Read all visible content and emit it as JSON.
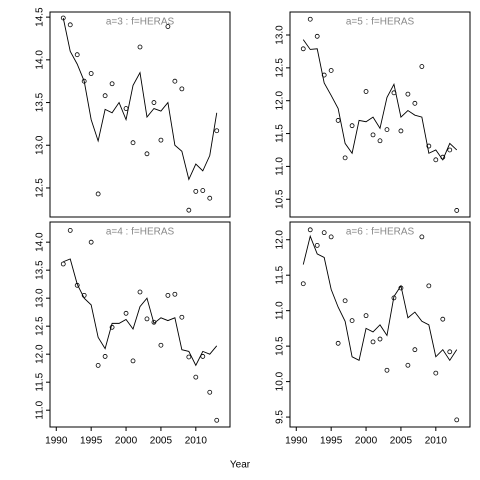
{
  "xlabel": "Year",
  "chart_data": [
    {
      "type": "line",
      "title": "a=3  :  f=HERAS",
      "x": [
        1991,
        1992,
        1993,
        1994,
        1995,
        1996,
        1997,
        1998,
        1999,
        2000,
        2001,
        2002,
        2003,
        2004,
        2005,
        2006,
        2007,
        2008,
        2009,
        2010,
        2011,
        2012,
        2013
      ],
      "series": [
        {
          "color": "#000000",
          "marker": "none",
          "values": [
            14.49,
            14.1,
            13.95,
            13.75,
            13.3,
            13.05,
            13.42,
            13.38,
            13.5,
            13.3,
            13.7,
            13.85,
            13.33,
            13.43,
            13.4,
            13.5,
            13.0,
            12.93,
            12.6,
            12.78,
            12.7,
            12.88,
            13.38
          ]
        },
        {
          "color": "#000000",
          "marker": "circle",
          "values": [
            14.49,
            14.41,
            14.06,
            13.75,
            13.84,
            12.43,
            13.58,
            13.72,
            null,
            13.43,
            13.03,
            14.15,
            12.9,
            13.5,
            13.06,
            14.39,
            13.75,
            13.66,
            12.24,
            12.46,
            12.47,
            12.38,
            13.17
          ]
        }
      ],
      "xlim": [
        1989.1,
        2014.9
      ],
      "ylim": [
        12.16,
        14.56
      ],
      "yticks": [
        12.5,
        {
          "value": 13,
          "label": "13.0"
        },
        13.5,
        {
          "value": 14,
          "label": "14.0"
        },
        14.5
      ]
    },
    {
      "type": "line",
      "title": "a=5  :  f=HERAS",
      "x": [
        1991,
        1992,
        1993,
        1994,
        1995,
        1996,
        1997,
        1998,
        1999,
        2000,
        2001,
        2002,
        2003,
        2004,
        2005,
        2006,
        2007,
        2008,
        2009,
        2010,
        2011,
        2012,
        2013
      ],
      "series": [
        {
          "color": "#000000",
          "marker": "none",
          "values": [
            12.93,
            12.78,
            12.79,
            12.27,
            12.08,
            11.88,
            11.35,
            11.2,
            11.7,
            11.68,
            11.75,
            11.58,
            12.05,
            12.25,
            11.75,
            11.85,
            11.78,
            11.75,
            11.2,
            11.25,
            11.1,
            11.35,
            11.25
          ]
        },
        {
          "color": "#000000",
          "marker": "circle",
          "values": [
            12.79,
            13.24,
            12.98,
            12.39,
            12.46,
            11.7,
            11.13,
            11.62,
            null,
            12.14,
            11.48,
            11.39,
            11.56,
            12.12,
            11.54,
            12.1,
            11.96,
            12.52,
            11.31,
            11.1,
            11.14,
            11.25,
            10.33
          ]
        }
      ],
      "xlim": [
        1989.1,
        2014.9
      ],
      "ylim": [
        10.23,
        13.35
      ],
      "yticks": [
        10.5,
        {
          "value": 11,
          "label": "11.0"
        },
        11.5,
        {
          "value": 12,
          "label": "12.0"
        },
        12.5,
        {
          "value": 13,
          "label": "13.0"
        }
      ]
    },
    {
      "type": "line",
      "title": "a=4  :  f=HERAS",
      "x": [
        1991,
        1992,
        1993,
        1994,
        1995,
        1996,
        1997,
        1998,
        1999,
        2000,
        2001,
        2002,
        2003,
        2004,
        2005,
        2006,
        2007,
        2008,
        2009,
        2010,
        2011,
        2012,
        2013
      ],
      "series": [
        {
          "color": "#000000",
          "marker": "none",
          "values": [
            13.65,
            13.7,
            13.25,
            13.0,
            12.88,
            12.3,
            12.1,
            12.55,
            12.55,
            12.62,
            12.45,
            12.85,
            13.0,
            12.55,
            12.65,
            12.6,
            12.65,
            12.08,
            12.05,
            11.8,
            12.05,
            12.0,
            12.15
          ]
        },
        {
          "color": "#000000",
          "marker": "circle",
          "values": [
            13.61,
            14.21,
            13.23,
            13.05,
            14.0,
            11.8,
            11.96,
            12.48,
            null,
            12.73,
            11.88,
            13.11,
            12.63,
            12.57,
            12.16,
            13.05,
            13.07,
            12.66,
            11.95,
            11.59,
            11.96,
            11.32,
            10.82
          ]
        }
      ],
      "xlim": [
        1989.1,
        2014.9
      ],
      "ylim": [
        10.7,
        14.36
      ],
      "xticks": [
        1990,
        1995,
        2000,
        2005,
        2010
      ],
      "yticks": [
        {
          "value": 11,
          "label": "11.0"
        },
        11.5,
        {
          "value": 12,
          "label": "12.0"
        },
        12.5,
        {
          "value": 13,
          "label": "13.0"
        },
        13.5,
        {
          "value": 14,
          "label": "14.0"
        }
      ]
    },
    {
      "type": "line",
      "title": "a=6  :  f=HERAS",
      "x": [
        1991,
        1992,
        1993,
        1994,
        1995,
        1996,
        1997,
        1998,
        1999,
        2000,
        2001,
        2002,
        2003,
        2004,
        2005,
        2006,
        2007,
        2008,
        2009,
        2010,
        2011,
        2012,
        2013
      ],
      "series": [
        {
          "color": "#000000",
          "marker": "none",
          "values": [
            11.65,
            12.05,
            11.8,
            11.75,
            11.3,
            11.05,
            10.85,
            10.35,
            10.3,
            10.75,
            10.7,
            10.8,
            10.65,
            11.2,
            11.35,
            10.9,
            10.98,
            10.85,
            10.8,
            10.35,
            10.45,
            10.3,
            10.45
          ]
        },
        {
          "color": "#000000",
          "marker": "circle",
          "values": [
            11.38,
            12.14,
            11.92,
            12.1,
            12.04,
            10.54,
            11.14,
            10.86,
            null,
            10.93,
            10.56,
            10.6,
            10.16,
            11.18,
            11.32,
            10.23,
            10.45,
            12.04,
            11.35,
            10.12,
            10.88,
            10.42,
            9.46
          ]
        }
      ],
      "xlim": [
        1989.1,
        2014.9
      ],
      "ylim": [
        9.36,
        12.25
      ],
      "xticks": [
        1990,
        1995,
        2000,
        2005,
        2010
      ],
      "yticks": [
        9.5,
        {
          "value": 10,
          "label": "10.0"
        },
        10.5,
        {
          "value": 11,
          "label": "11.0"
        },
        11.5,
        {
          "value": 12,
          "label": "12.0"
        }
      ]
    }
  ]
}
